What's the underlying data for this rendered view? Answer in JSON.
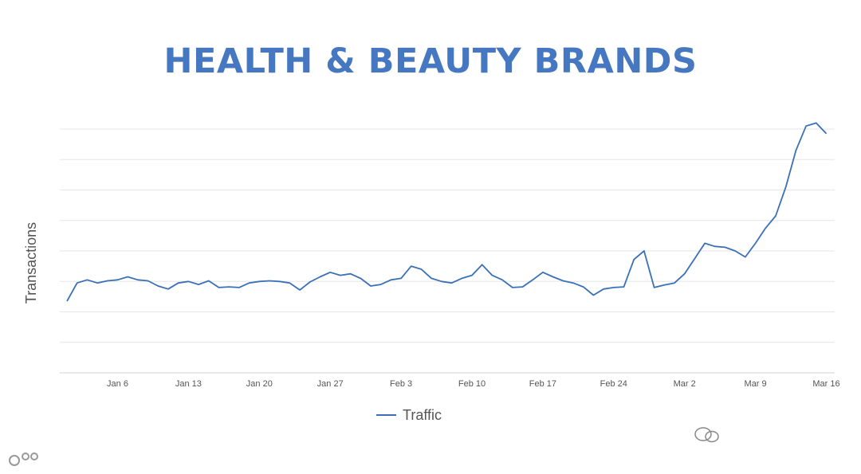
{
  "chart_data": {
    "type": "line",
    "title": "HEALTH & BEAUTY BRANDS",
    "ylabel": "Transactions",
    "xlabel": "",
    "y_tick_labels": "none",
    "ylim": [
      0,
      8
    ],
    "grid": "horizontal",
    "legend_position": "bottom-center",
    "tick_labels": [
      "Jan 6",
      "Jan 13",
      "Jan 20",
      "Jan 27",
      "Feb 3",
      "Feb 10",
      "Feb 17",
      "Feb 24",
      "Mar 2",
      "Mar 9",
      "Mar 16"
    ],
    "x_start": "Jan 1",
    "series": [
      {
        "name": "Traffic",
        "color": "#3a70b8",
        "values": [
          2.35,
          2.95,
          3.05,
          2.95,
          3.02,
          3.05,
          3.15,
          3.05,
          3.02,
          2.85,
          2.75,
          2.95,
          3.0,
          2.9,
          3.02,
          2.8,
          2.82,
          2.8,
          2.95,
          3.0,
          3.02,
          3.0,
          2.95,
          2.72,
          2.98,
          3.15,
          3.3,
          3.2,
          3.25,
          3.1,
          2.85,
          2.9,
          3.05,
          3.1,
          3.5,
          3.4,
          3.1,
          3.0,
          2.95,
          3.1,
          3.2,
          3.55,
          3.2,
          3.05,
          2.8,
          2.82,
          3.05,
          3.3,
          3.15,
          3.02,
          2.95,
          2.82,
          2.55,
          2.75,
          2.8,
          2.82,
          3.72,
          4.0,
          2.8,
          2.88,
          2.95,
          3.25,
          3.75,
          4.25,
          4.15,
          4.12,
          4.0,
          3.8,
          4.25,
          4.75,
          5.15,
          6.1,
          7.3,
          8.1,
          8.2,
          7.85
        ]
      }
    ]
  }
}
